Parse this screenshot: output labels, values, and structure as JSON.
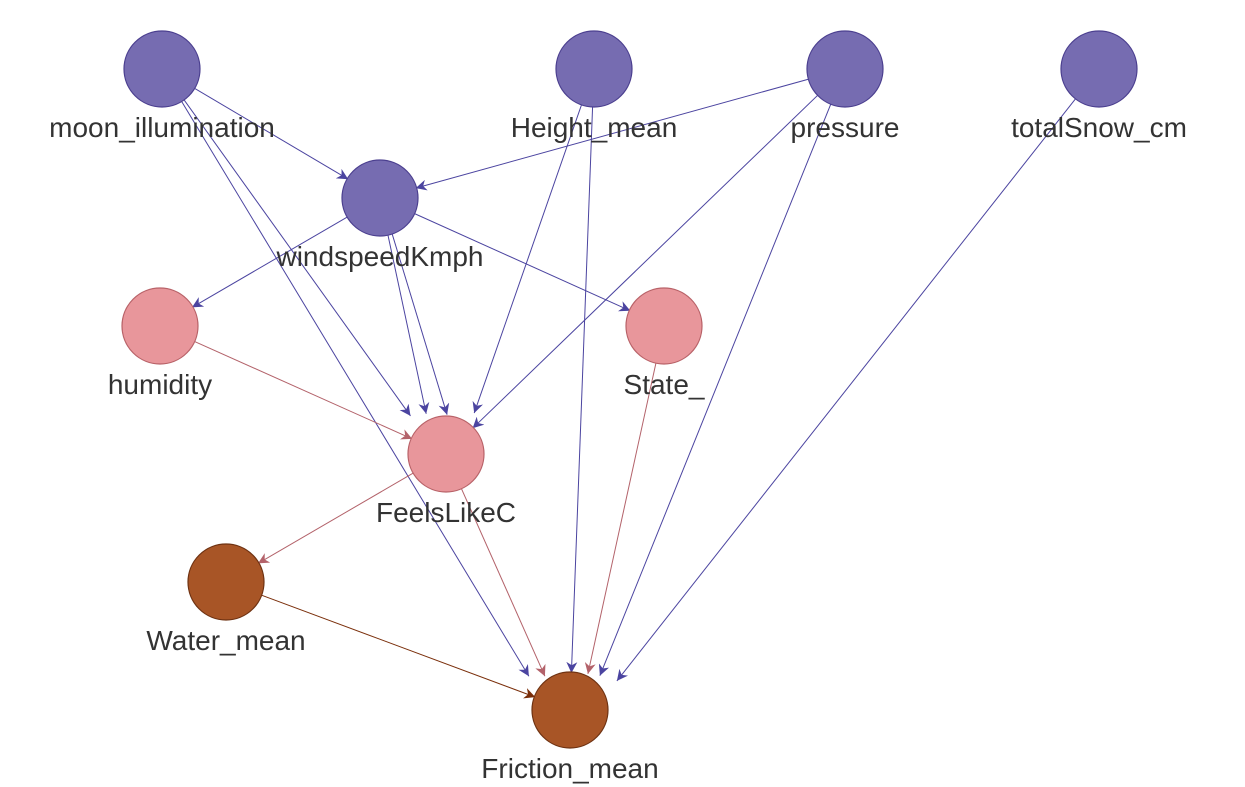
{
  "graph": {
    "groups": {
      "input": {
        "fill": "#766cb1",
        "stroke": "#4b3f8f",
        "edge": "#4b44a0"
      },
      "intermediate": {
        "fill": "#e8969b",
        "stroke": "#b86268",
        "edge": "#b3626a"
      },
      "output": {
        "fill": "#a85526",
        "stroke": "#6e3212",
        "edge": "#7a2e0a"
      }
    },
    "nodes": [
      {
        "id": "moon_illumination",
        "label": "moon_illumination",
        "group": "input"
      },
      {
        "id": "Height_mean",
        "label": "Height_mean",
        "group": "input"
      },
      {
        "id": "pressure",
        "label": "pressure",
        "group": "input"
      },
      {
        "id": "totalSnow_cm",
        "label": "totalSnow_cm",
        "group": "input"
      },
      {
        "id": "windspeedKmph",
        "label": "windspeedKmph",
        "group": "input"
      },
      {
        "id": "humidity",
        "label": "humidity",
        "group": "intermediate"
      },
      {
        "id": "State_",
        "label": "State_",
        "group": "intermediate"
      },
      {
        "id": "FeelsLikeC",
        "label": "FeelsLikeC",
        "group": "intermediate"
      },
      {
        "id": "Water_mean",
        "label": "Water_mean",
        "group": "output"
      },
      {
        "id": "Friction_mean",
        "label": "Friction_mean",
        "group": "output"
      }
    ],
    "edges": [
      {
        "from": "moon_illumination",
        "to": "windspeedKmph"
      },
      {
        "from": "moon_illumination",
        "to": "FeelsLikeC"
      },
      {
        "from": "moon_illumination",
        "to": "Friction_mean"
      },
      {
        "from": "pressure",
        "to": "windspeedKmph"
      },
      {
        "from": "pressure",
        "to": "FeelsLikeC"
      },
      {
        "from": "pressure",
        "to": "Friction_mean"
      },
      {
        "from": "Height_mean",
        "to": "FeelsLikeC"
      },
      {
        "from": "Height_mean",
        "to": "Friction_mean"
      },
      {
        "from": "totalSnow_cm",
        "to": "Friction_mean"
      },
      {
        "from": "windspeedKmph",
        "to": "humidity"
      },
      {
        "from": "windspeedKmph",
        "to": "State_"
      },
      {
        "from": "windspeedKmph",
        "to": "FeelsLikeC"
      },
      {
        "from": "windspeedKmph",
        "to": "FeelsLikeC"
      },
      {
        "from": "humidity",
        "to": "FeelsLikeC"
      },
      {
        "from": "State_",
        "to": "Friction_mean"
      },
      {
        "from": "FeelsLikeC",
        "to": "Water_mean"
      },
      {
        "from": "FeelsLikeC",
        "to": "Friction_mean"
      },
      {
        "from": "Water_mean",
        "to": "Friction_mean"
      }
    ]
  }
}
